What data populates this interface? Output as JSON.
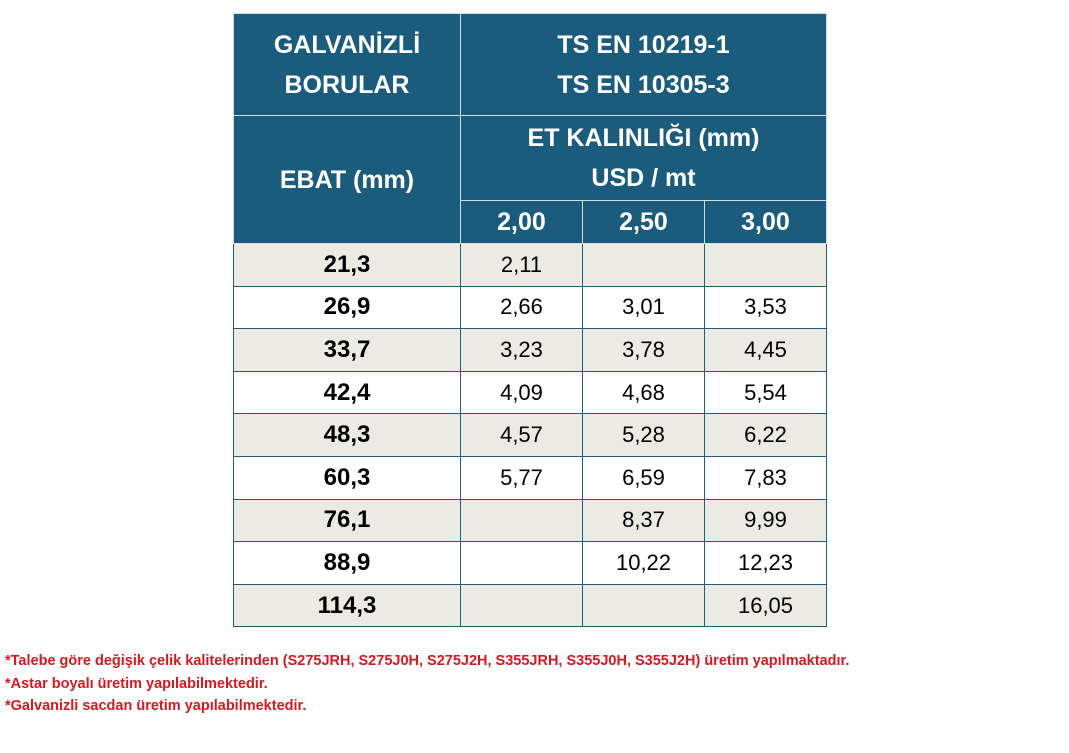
{
  "header": {
    "title_lines": [
      "GALVANİZLİ",
      "BORULAR"
    ],
    "standards": [
      "TS EN 10219-1",
      "TS EN 10305-3"
    ],
    "size_label": "EBAT (mm)",
    "thickness_lines": [
      "ET KALINLIĞI (mm)",
      "USD / mt"
    ],
    "thickness_columns": [
      "2,00",
      "2,50",
      "3,00"
    ]
  },
  "table": {
    "rows": [
      [
        "21,3",
        "2,11",
        null,
        null
      ],
      [
        "26,9",
        "2,66",
        "3,01",
        "3,53"
      ],
      [
        "33,7",
        "3,23",
        "3,78",
        "4,45"
      ],
      [
        "42,4",
        "4,09",
        "4,68",
        "5,54"
      ],
      [
        "48,3",
        "4,57",
        "5,28",
        "6,22"
      ],
      [
        "60,3",
        "5,77",
        "6,59",
        "7,83"
      ],
      [
        "76,1",
        null,
        "8,37",
        "9,99"
      ],
      [
        "88,9",
        null,
        "10,22",
        "12,23"
      ],
      [
        "114,3",
        null,
        null,
        "16,05"
      ]
    ]
  },
  "notes": [
    "*Talebe göre değişik çelik kalitelerinden (S275JRH, S275J0H, S275J2H, S355JRH, S355J0H, S355J2H) üretim yapılmaktadır.",
    "*Astar boyalı üretim yapılabilmektedir.",
    "*Galvanizli sacdan üretim yapılabilmektedir."
  ]
}
